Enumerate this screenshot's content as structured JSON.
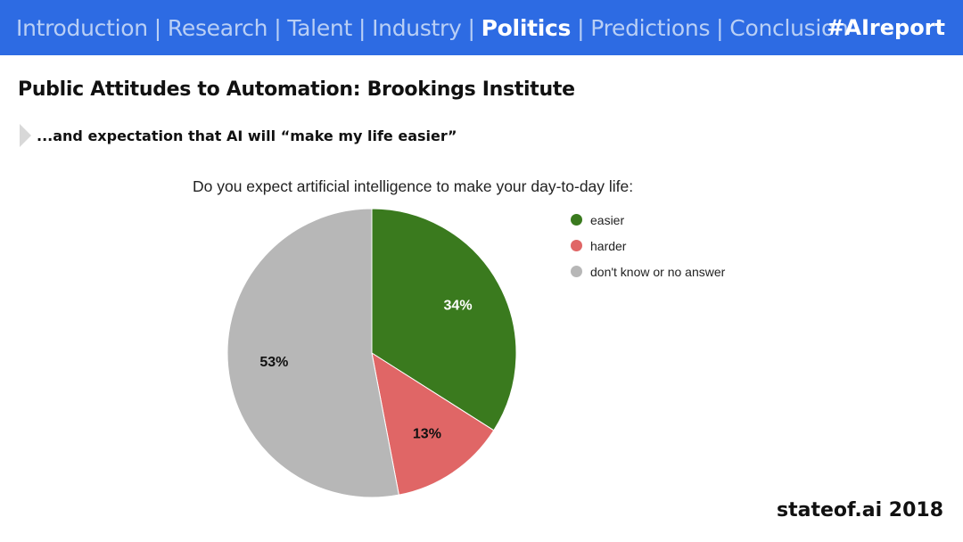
{
  "header": {
    "nav_items": [
      {
        "label": "Introduction",
        "active": false
      },
      {
        "label": "Research",
        "active": false
      },
      {
        "label": "Talent",
        "active": false
      },
      {
        "label": "Industry",
        "active": false
      },
      {
        "label": "Politics",
        "active": true
      },
      {
        "label": "Predictions",
        "active": false
      },
      {
        "label": "Conclusion",
        "active": false
      }
    ],
    "separator": "|",
    "hashtag": "#AIreport"
  },
  "title": "Public Attitudes to Automation: Brookings Institute",
  "subtitle": "...and expectation that AI will “make my life easier”",
  "footer": "stateof.ai 2018",
  "colors": {
    "header_bg": "#2d6be3",
    "easier": "#3a7a1e",
    "harder": "#e06666",
    "dont_know": "#b7b7b7"
  },
  "chart_data": {
    "type": "pie",
    "title": "Do you expect artificial intelligence to make your day-to-day life:",
    "legend_position": "right",
    "slices": [
      {
        "label": "easier",
        "value": 34,
        "display": "34%",
        "color": "#3a7a1e",
        "label_color": "#ffffff"
      },
      {
        "label": "harder",
        "value": 13,
        "display": "13%",
        "color": "#e06666",
        "label_color": "#111111"
      },
      {
        "label": "don't know or no answer",
        "value": 53,
        "display": "53%",
        "color": "#b7b7b7",
        "label_color": "#111111"
      }
    ]
  }
}
